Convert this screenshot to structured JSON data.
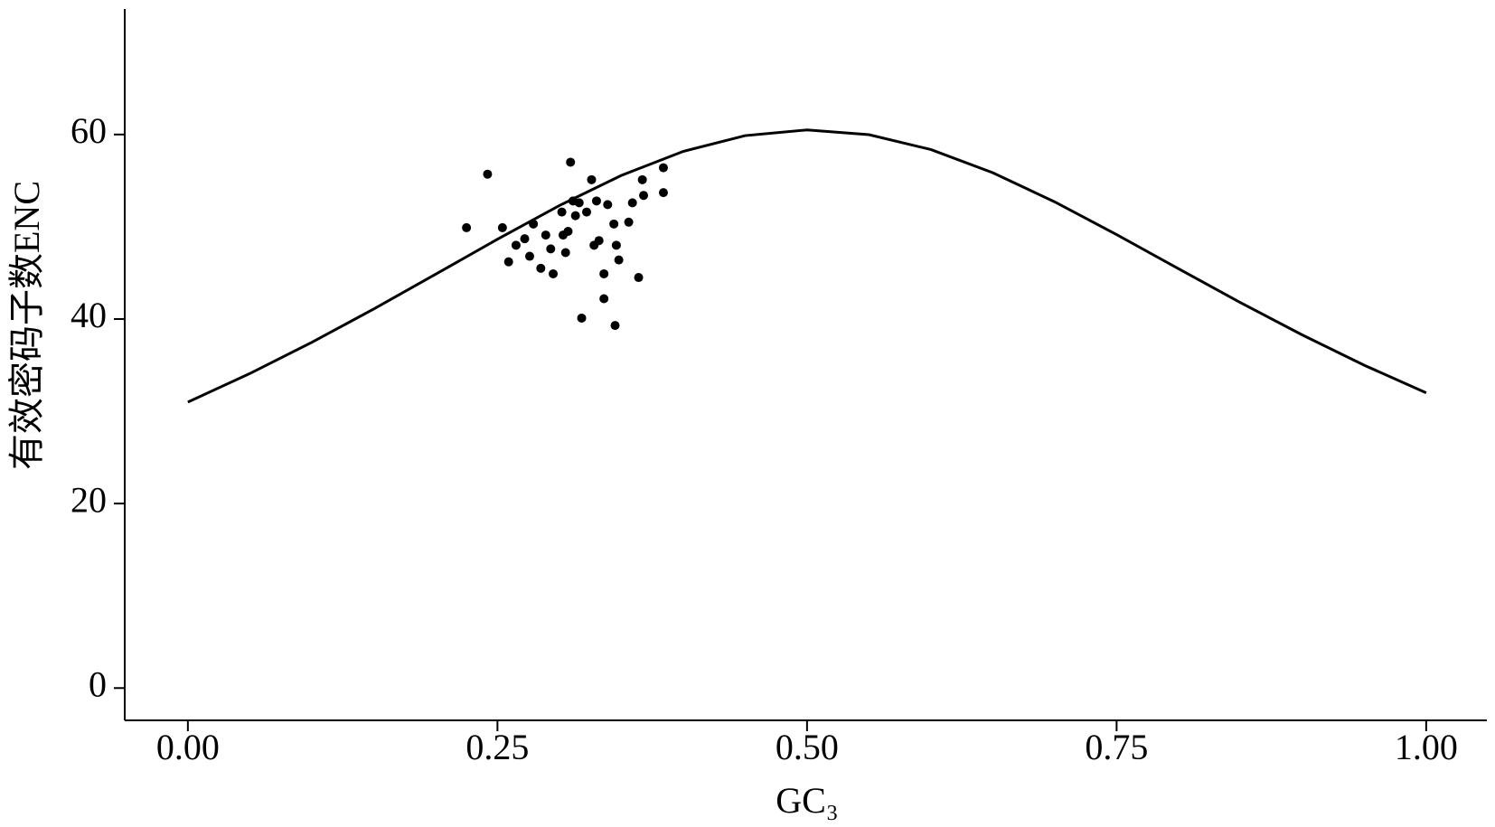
{
  "chart_data": {
    "type": "scatter",
    "x_label": "GC₃",
    "y_label": "有效密码子数ENC",
    "xlim": [
      -0.051,
      1.049
    ],
    "ylim": [
      -3.5,
      73.6
    ],
    "xticks": [
      {
        "value": 0,
        "label": "0.00"
      },
      0.25,
      {
        "value": 0.5,
        "label": "0.50"
      },
      0.75,
      {
        "value": 1,
        "label": "1.00"
      }
    ],
    "yticks": [
      0,
      20,
      40,
      60
    ],
    "curve": {
      "color": "#000000",
      "x": [
        0,
        0.05,
        0.1,
        0.15,
        0.2,
        0.25,
        0.3,
        0.35,
        0.4,
        0.45,
        0.5,
        0.55,
        0.6,
        0.65,
        0.7,
        0.75,
        0.8,
        0.85,
        0.9,
        0.95,
        1
      ],
      "values": [
        31,
        34.09,
        37.47,
        41.08,
        44.85,
        48.65,
        52.3,
        55.56,
        58.17,
        59.88,
        60.5,
        59.98,
        58.37,
        55.86,
        52.7,
        49.15,
        45.45,
        41.78,
        38.27,
        34.99,
        32
      ]
    },
    "points": {
      "color": "#000000",
      "x": [
        0.225,
        0.242,
        0.254,
        0.259,
        0.265,
        0.272,
        0.276,
        0.279,
        0.285,
        0.289,
        0.293,
        0.295,
        0.302,
        0.303,
        0.305,
        0.307,
        0.309,
        0.311,
        0.313,
        0.316,
        0.318,
        0.322,
        0.326,
        0.328,
        0.33,
        0.332,
        0.336,
        0.336,
        0.339,
        0.344,
        0.345,
        0.346,
        0.348,
        0.356,
        0.359,
        0.364,
        0.367,
        0.368,
        0.384,
        0.384
      ],
      "values": [
        49.9,
        55.7,
        49.9,
        46.2,
        48.0,
        48.7,
        46.8,
        50.3,
        45.5,
        49.1,
        47.6,
        44.9,
        51.6,
        49.1,
        47.2,
        49.5,
        57.0,
        52.8,
        51.2,
        52.6,
        40.1,
        51.6,
        55.1,
        48.0,
        52.8,
        48.5,
        44.9,
        42.2,
        52.4,
        50.3,
        39.3,
        48.0,
        46.4,
        50.5,
        52.6,
        44.5,
        55.1,
        53.4,
        56.4,
        53.7
      ]
    }
  }
}
